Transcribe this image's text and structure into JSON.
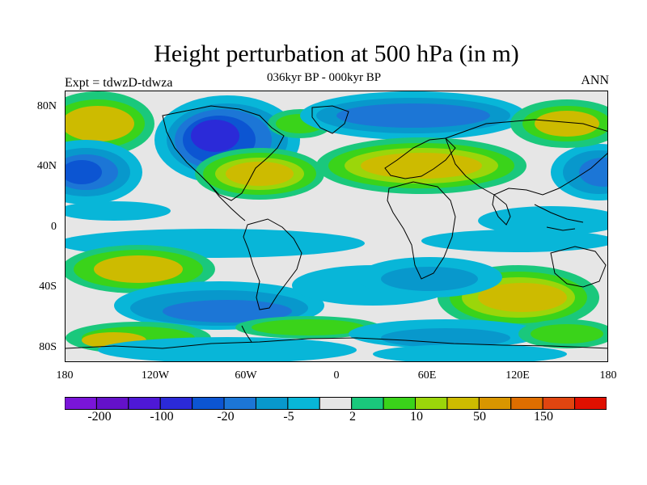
{
  "title": "Height perturbation at 500 hPa (in m)",
  "subtitle": "036kyr BP - 000kyr BP",
  "left_label": "Expt = tdwzD-tdwza",
  "right_label": "ANN",
  "lat_labels": [
    "80N",
    "40N",
    "0",
    "40S",
    "80S"
  ],
  "lon_labels": [
    "180",
    "120W",
    "60W",
    "0",
    "60E",
    "120E",
    "180"
  ],
  "colorbar": {
    "colors": [
      "#7a15d9",
      "#6411c9",
      "#4e18d6",
      "#2b2ad8",
      "#0c55d2",
      "#1c76d6",
      "#0898cc",
      "#08b6d8",
      "#e6e6e6",
      "#1ac87c",
      "#3ad31a",
      "#9bd60a",
      "#cdbb00",
      "#d99600",
      "#df6e00",
      "#e04510",
      "#e01000"
    ],
    "labels": [
      "-200",
      "-100",
      "-20",
      "-5",
      "2",
      "10",
      "50",
      "150"
    ]
  },
  "field_colors": {
    "neutral": "#e6e6e6",
    "neg1": "#08b6d8",
    "neg2": "#0898cc",
    "neg3": "#1c76d6",
    "neg4": "#0c55d2",
    "neg5": "#2b2ad8",
    "pos1": "#1ac87c",
    "pos2": "#3ad31a",
    "pos3": "#9bd60a",
    "pos4": "#cdbb00",
    "pos5": "#d99600"
  }
}
